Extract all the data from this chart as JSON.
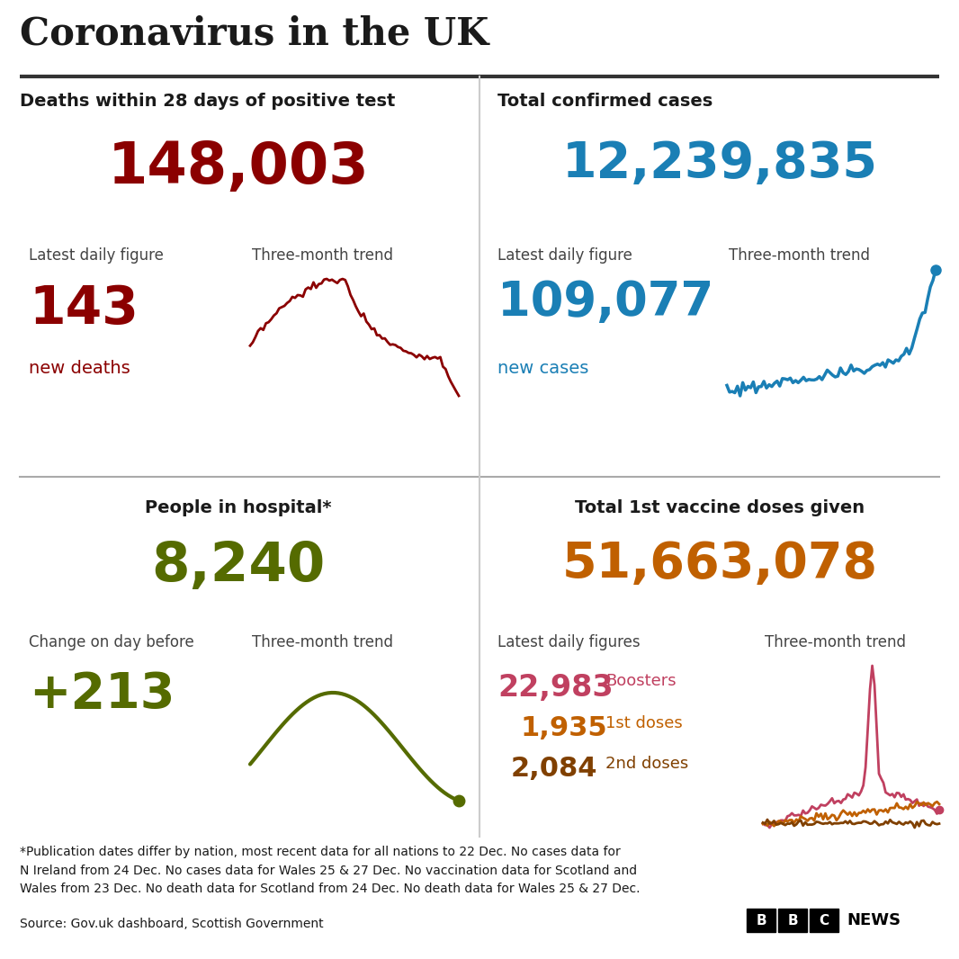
{
  "title": "Coronavirus in the UK",
  "bg_color": "#ffffff",
  "title_color": "#1a1a1a",
  "deaths_label": "Deaths within 28 days of positive test",
  "deaths_total": "148,003",
  "deaths_daily_label": "Latest daily figure",
  "deaths_trend_label": "Three-month trend",
  "deaths_daily": "143",
  "deaths_daily_sub": "new deaths",
  "deaths_color": "#8b0000",
  "cases_label": "Total confirmed cases",
  "cases_total": "12,239,835",
  "cases_daily_label": "Latest daily figure",
  "cases_trend_label": "Three-month trend",
  "cases_daily": "109,077",
  "cases_daily_sub": "new cases",
  "cases_color": "#1a7fb5",
  "hospital_label": "People in hospital*",
  "hospital_total": "8,240",
  "hospital_change_label": "Change on day before",
  "hospital_trend_label": "Three-month trend",
  "hospital_change": "+213",
  "hospital_color": "#556b00",
  "vaccine_label": "Total 1st vaccine doses given",
  "vaccine_total": "51,663,078",
  "vaccine_daily_label": "Latest daily figures",
  "vaccine_trend_label": "Three-month trend",
  "vaccine_boosters": "22,983",
  "vaccine_boosters_label": "Boosters",
  "vaccine_1st": "1,935",
  "vaccine_1st_label": "1st doses",
  "vaccine_2nd": "2,084",
  "vaccine_2nd_label": "2nd doses",
  "vaccine_color": "#c06000",
  "vaccine_booster_color": "#c04060",
  "vaccine_1st_color": "#c06000",
  "vaccine_2nd_color": "#804000",
  "footnote": "*Publication dates differ by nation, most recent data for all nations to 22 Dec. No cases data for\nN Ireland from 24 Dec. No cases data for Wales 25 & 27 Dec. No vaccination data for Scotland and\nWales from 23 Dec. No death data for Scotland from 24 Dec. No death data for Wales 25 & 27 Dec.",
  "source": "Source: Gov.uk dashboard, Scottish Government",
  "text_color": "#1a1a1a",
  "label_color": "#444444"
}
